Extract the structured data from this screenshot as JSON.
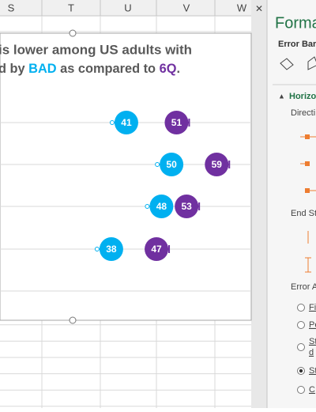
{
  "spreadsheet": {
    "columns": [
      "S",
      "T",
      "U",
      "V",
      "W"
    ]
  },
  "chart_data": {
    "type": "dot",
    "title": {
      "line1": "is lower among US adults with",
      "line2": [
        "d by ",
        "BAD",
        " as compared to ",
        "6Q",
        "."
      ]
    },
    "series": [
      {
        "color": "#00b0f0",
        "values": [
          41,
          50,
          48,
          38
        ]
      },
      {
        "color": "#7030a0",
        "values": [
          51,
          59,
          53,
          47
        ]
      }
    ]
  },
  "pane": {
    "title": "Forma",
    "subtitle": "Error Bar",
    "section": "Horizo",
    "labels": [
      "Directi",
      "End St",
      "Error A"
    ],
    "options": [
      [
        "Fi"
      ],
      [
        "Pe"
      ],
      [
        "St",
        "d"
      ],
      [
        "St"
      ],
      [
        "C"
      ]
    ],
    "selected": 3
  }
}
